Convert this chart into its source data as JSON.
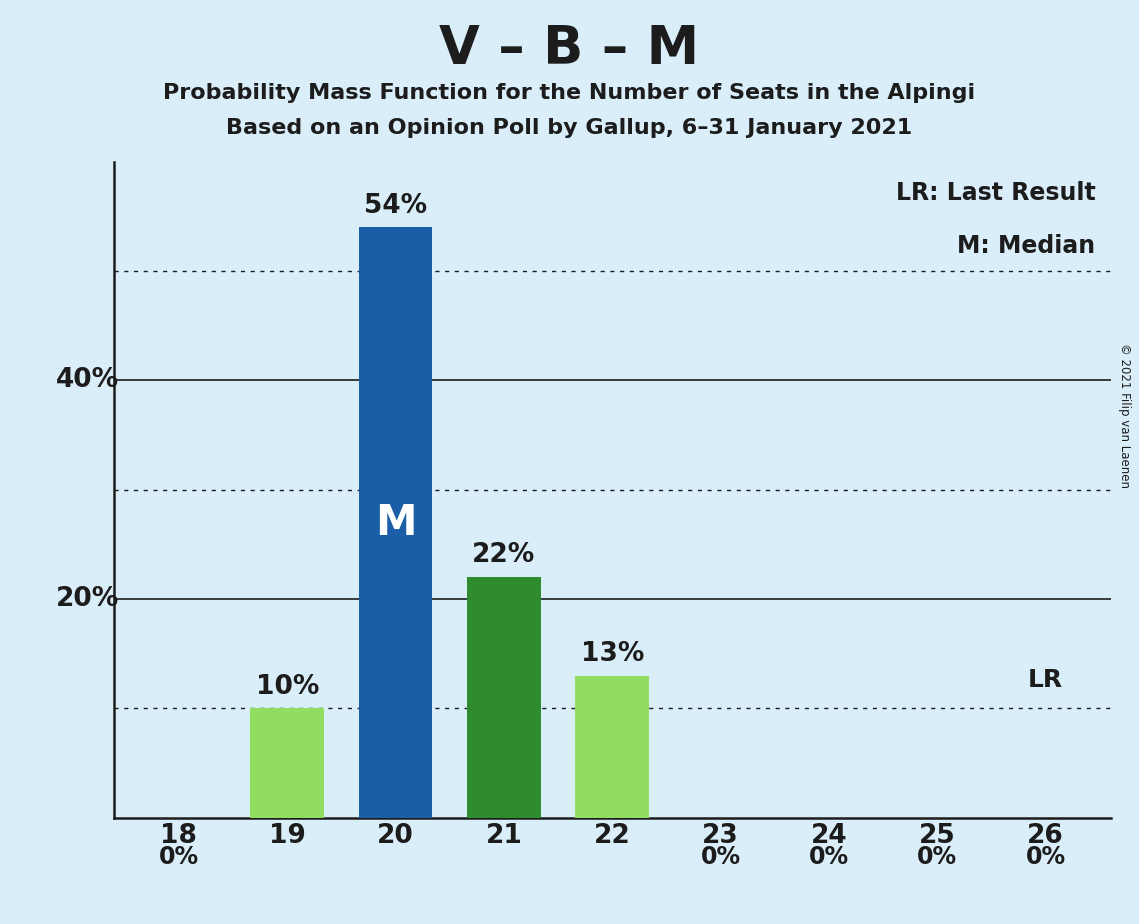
{
  "title": "V – B – M",
  "subtitle1": "Probability Mass Function for the Number of Seats in the Alpingi",
  "subtitle2": "Based on an Opinion Poll by Gallup, 6–31 January 2021",
  "copyright": "© 2021 Filip van Laenen",
  "seats": [
    18,
    19,
    20,
    21,
    22,
    23,
    24,
    25,
    26
  ],
  "values": [
    0,
    10,
    54,
    22,
    13,
    0,
    0,
    0,
    0
  ],
  "bar_colors": [
    "#90DD60",
    "#90DD60",
    "#1A5EA8",
    "#2E8B2E",
    "#90DD60",
    "#90DD60",
    "#90DD60",
    "#90DD60",
    "#90DD60"
  ],
  "median_seat": 20,
  "lr_seat": 26,
  "ylim": [
    0,
    60
  ],
  "ytick_vals": [
    20,
    40
  ],
  "ytick_labels": [
    "20%",
    "40%"
  ],
  "solid_yticks": [
    20,
    40
  ],
  "dotted_yticks": [
    10,
    30,
    50
  ],
  "background_color": "#DAEEF9",
  "legend_text1": "LR: Last Result",
  "legend_text2": "M: Median"
}
